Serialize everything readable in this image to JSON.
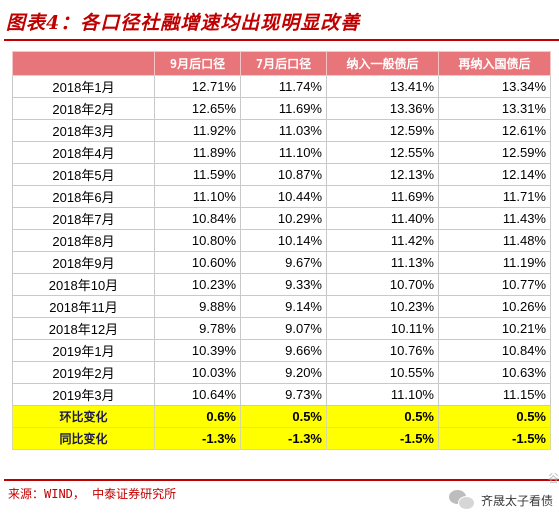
{
  "title": "图表4：各口径社融增速均出现明显改善",
  "table": {
    "headers": [
      "",
      "9月后口径",
      "7月后口径",
      "纳入一般债后",
      "再纳入国债后"
    ],
    "rows": [
      [
        "2018年1月",
        "12.71%",
        "11.74%",
        "13.41%",
        "13.34%"
      ],
      [
        "2018年2月",
        "12.65%",
        "11.69%",
        "13.36%",
        "13.31%"
      ],
      [
        "2018年3月",
        "11.92%",
        "11.03%",
        "12.59%",
        "12.61%"
      ],
      [
        "2018年4月",
        "11.89%",
        "11.10%",
        "12.55%",
        "12.59%"
      ],
      [
        "2018年5月",
        "11.59%",
        "10.87%",
        "12.13%",
        "12.14%"
      ],
      [
        "2018年6月",
        "11.10%",
        "10.44%",
        "11.69%",
        "11.71%"
      ],
      [
        "2018年7月",
        "10.84%",
        "10.29%",
        "11.40%",
        "11.43%"
      ],
      [
        "2018年8月",
        "10.80%",
        "10.14%",
        "11.42%",
        "11.48%"
      ],
      [
        "2018年9月",
        "10.60%",
        "9.67%",
        "11.13%",
        "11.19%"
      ],
      [
        "2018年10月",
        "10.23%",
        "9.33%",
        "10.70%",
        "10.77%"
      ],
      [
        "2018年11月",
        "9.88%",
        "9.14%",
        "10.23%",
        "10.26%"
      ],
      [
        "2018年12月",
        "9.78%",
        "9.07%",
        "10.11%",
        "10.21%"
      ],
      [
        "2019年1月",
        "10.39%",
        "9.66%",
        "10.76%",
        "10.84%"
      ],
      [
        "2019年2月",
        "10.03%",
        "9.20%",
        "10.55%",
        "10.63%"
      ],
      [
        "2019年3月",
        "10.64%",
        "9.73%",
        "11.10%",
        "11.15%"
      ]
    ],
    "summary": [
      [
        "环比变化",
        "0.6%",
        "0.5%",
        "0.5%",
        "0.5%"
      ],
      [
        "同比变化",
        "-1.3%",
        "-1.3%",
        "-1.5%",
        "-1.5%"
      ]
    ]
  },
  "source": "来源：WIND，  中泰证券研究所",
  "watermark": "齐晟太子看债",
  "side_mark": "谷",
  "colors": {
    "title": "#c00000",
    "header_bg": "#e8757a",
    "summary_bg": "#ffff00"
  }
}
